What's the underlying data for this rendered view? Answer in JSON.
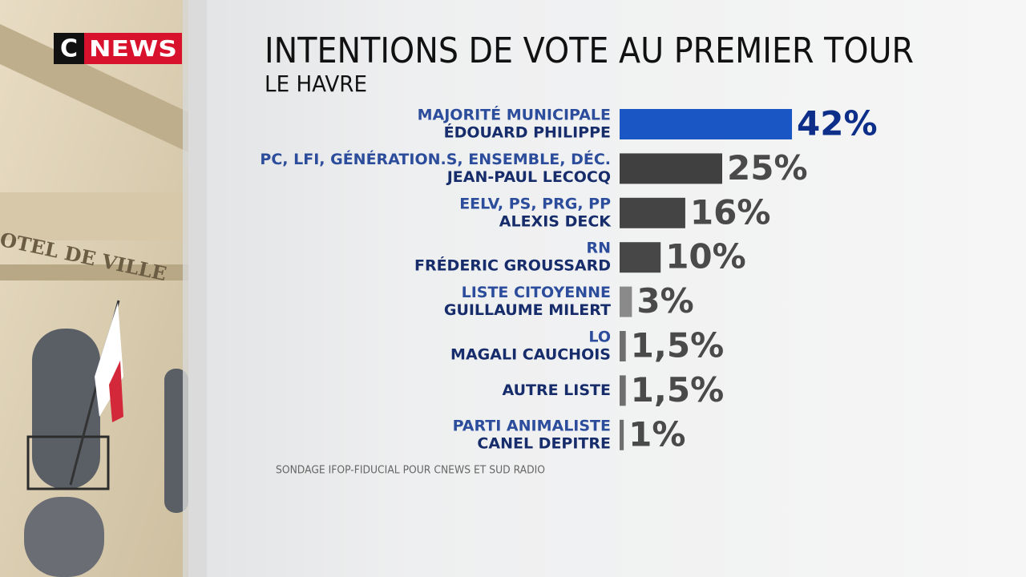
{
  "logo": {
    "left": "C",
    "right": "NEWS"
  },
  "background_sign": "OTEL DE VILLE",
  "chart_data": {
    "type": "bar",
    "orientation": "horizontal",
    "title": "INTENTIONS DE VOTE AU PREMIER TOUR",
    "subtitle": "LE HAVRE",
    "source": "SONDAGE IFOP-FIDUCIAL POUR CNEWS ET SUD RADIO",
    "categories": [
      "MAJORITÉ MUNICIPALE",
      "PC, LFI, GÉNÉRATION.S, ENSEMBLE, DÉC.",
      "EELV, PS, PRG, PP",
      "RN",
      "LISTE CITOYENNE",
      "LO",
      null,
      "PARTI ANIMALISTE"
    ],
    "candidates": [
      "ÉDOUARD PHILIPPE",
      "JEAN-PAUL LECOCQ",
      "ALEXIS DECK",
      "FRÉDERIC GROUSSARD",
      "GUILLAUME MILERT",
      "MAGALI CAUCHOIS",
      "AUTRE LISTE",
      "CANEL DEPITRE"
    ],
    "values": [
      42,
      25,
      16,
      10,
      3,
      1.5,
      1.5,
      1
    ],
    "value_labels": [
      "42%",
      "25%",
      "16%",
      "10%",
      "3%",
      "1,5%",
      "1,5%",
      "1%"
    ],
    "colors": [
      "#1a57c4",
      "#404040",
      "#444444",
      "#474747",
      "#8a8a8a",
      "#6e6e6e",
      "#6e6e6e",
      "#6e6e6e"
    ],
    "value_label_colors": [
      "#0d2f8a",
      "#4a4a4a",
      "#4a4a4a",
      "#4a4a4a",
      "#4a4a4a",
      "#4a4a4a",
      "#4a4a4a",
      "#4a4a4a"
    ]
  }
}
